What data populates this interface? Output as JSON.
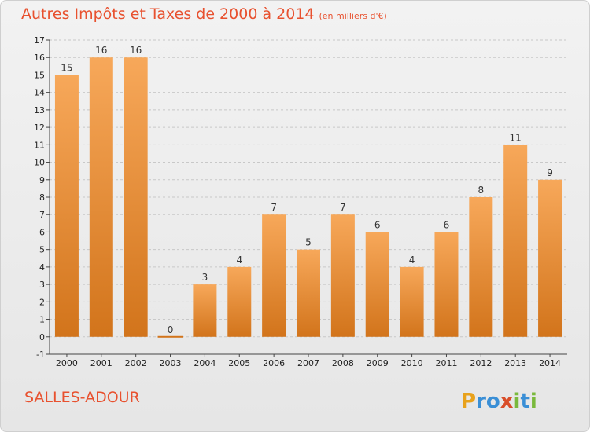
{
  "header": {
    "title": "Autres Impôts et Taxes de 2000 à 2014",
    "subtitle": "(en milliers d'€)"
  },
  "footer": {
    "commune": "SALLES-ADOUR",
    "logo": {
      "letters": [
        "P",
        "r",
        "o",
        "x",
        "i",
        "t",
        "i"
      ],
      "colors": [
        "#e8a21c",
        "#3a8fd6",
        "#3a8fd6",
        "#d94e2a",
        "#7ab93c",
        "#3a8fd6",
        "#7ab93c"
      ]
    }
  },
  "chart_data": {
    "type": "bar",
    "title": "Autres Impôts et Taxes de 2000 à 2014",
    "subtitle": "(en milliers d'€)",
    "categories": [
      "2000",
      "2001",
      "2002",
      "2003",
      "2004",
      "2005",
      "2006",
      "2007",
      "2008",
      "2009",
      "2010",
      "2011",
      "2012",
      "2013",
      "2014"
    ],
    "values": [
      15,
      16,
      16,
      0,
      3,
      4,
      7,
      5,
      7,
      6,
      4,
      6,
      8,
      11,
      9
    ],
    "ylim": [
      -1,
      17
    ],
    "yticks": [
      "-1",
      "0",
      "1",
      "2",
      "3",
      "4",
      "5",
      "6",
      "7",
      "8",
      "9",
      "10",
      "11",
      "12",
      "13",
      "14",
      "15",
      "16",
      "17"
    ],
    "grid": true,
    "colors": {
      "bar_top": "#f7a85a",
      "bar_bottom": "#d2741b",
      "grid": "#c8c8c8"
    }
  }
}
